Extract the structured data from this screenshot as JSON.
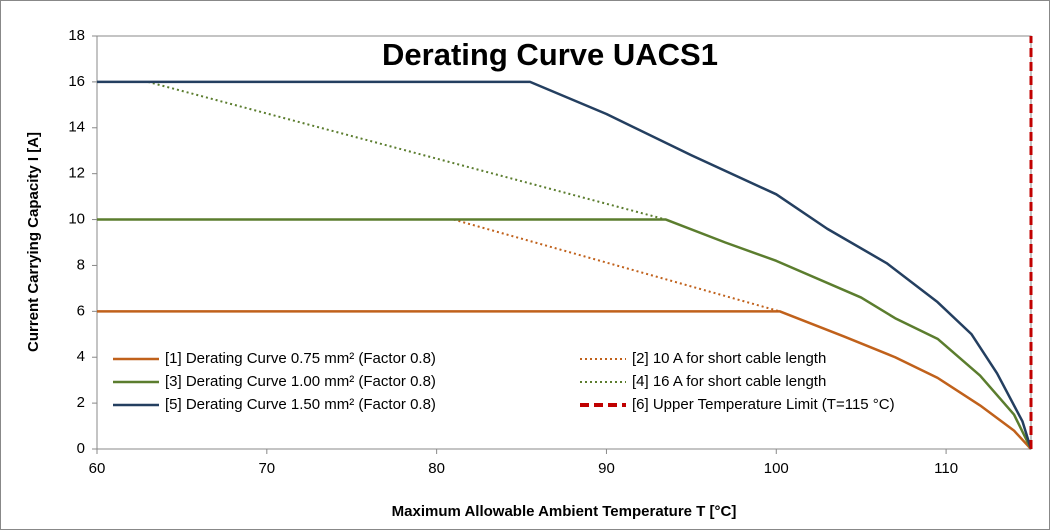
{
  "chart_data": {
    "type": "line",
    "title": "Derating Curve UACS1",
    "x_label": "Maximum Allowable  Ambient Temperature T [°C]",
    "y_label": "Current Carrying Capacity    I [A]",
    "xlim": [
      60,
      115
    ],
    "ylim": [
      0,
      18
    ],
    "xticks": [
      60,
      70,
      80,
      90,
      100,
      110
    ],
    "yticks": [
      0,
      2,
      4,
      6,
      8,
      10,
      12,
      14,
      16,
      18
    ],
    "grid": false,
    "legend": "bottom",
    "series": [
      {
        "name": "[1] Derating Curve 0.75 mm²  (Factor 0.8)",
        "color": "#c0611b",
        "style": "solid",
        "x": [
          60,
          100.2,
          104,
          107,
          109.5,
          112,
          114,
          115
        ],
        "values": [
          6,
          6,
          4.9,
          4,
          3.1,
          1.9,
          0.8,
          0
        ]
      },
      {
        "name": "[2] 10 A for short cable length",
        "color": "#c0611b",
        "style": "dotted",
        "x": [
          81,
          100.2
        ],
        "values": [
          10,
          6
        ]
      },
      {
        "name": "[3] Derating Curve 1.00 mm²  (Factor 0.8)",
        "color": "#5b7d2e",
        "style": "solid",
        "x": [
          60,
          93.5,
          97,
          100,
          105,
          107,
          109.5,
          112,
          114,
          115
        ],
        "values": [
          10,
          10,
          9,
          8.2,
          6.6,
          5.7,
          4.8,
          3.2,
          1.5,
          0
        ]
      },
      {
        "name": "[4] 16 A for short cable length",
        "color": "#5b7d2e",
        "style": "dotted",
        "x": [
          63,
          93.5
        ],
        "values": [
          16,
          10
        ]
      },
      {
        "name": "[5] Derating Curve 1.50 mm²  (Factor 0.8)",
        "color": "#243f60",
        "style": "solid",
        "x": [
          60,
          85.5,
          90,
          95,
          100,
          103,
          106.5,
          109.5,
          111.5,
          113,
          114.5,
          115
        ],
        "values": [
          16,
          16,
          14.6,
          12.8,
          11.1,
          9.6,
          8.1,
          6.4,
          5,
          3.3,
          1.2,
          0
        ]
      },
      {
        "name": "[6] Upper Temperature  Limit (T=115 °C)",
        "color": "#c00000",
        "style": "dashed",
        "x": [
          115,
          115
        ],
        "values": [
          0,
          18
        ]
      }
    ]
  }
}
